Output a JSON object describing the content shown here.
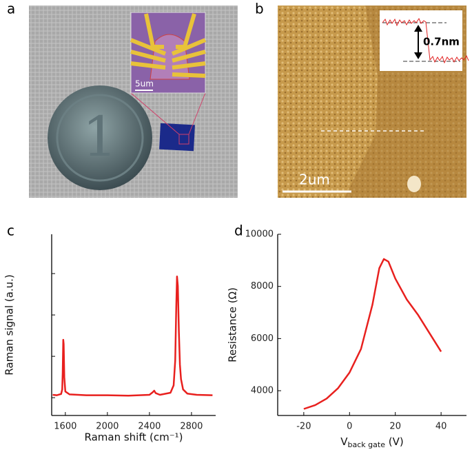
{
  "panels": {
    "a": {
      "label": "a",
      "scale_bar": "5um"
    },
    "b": {
      "label": "b",
      "step_height": "0.7nm",
      "scale_bar": "2um"
    },
    "c": {
      "label": "c"
    },
    "d": {
      "label": "d"
    }
  },
  "chart_data": [
    {
      "type": "line",
      "xlabel": "Raman shift (cm⁻¹)",
      "ylabel": "Raman signal (a.u.)",
      "x": [
        1480,
        1520,
        1560,
        1570,
        1575,
        1580,
        1584,
        1590,
        1600,
        1640,
        1800,
        2000,
        2200,
        2400,
        2430,
        2445,
        2460,
        2500,
        2600,
        2630,
        2645,
        2655,
        2662,
        2670,
        2680,
        2690,
        2700,
        2720,
        2760,
        2850,
        3000
      ],
      "series": [
        {
          "color": "#e8201e",
          "values": [
            0.07,
            0.06,
            0.09,
            0.2,
            0.6,
            1.4,
            1.3,
            0.5,
            0.15,
            0.08,
            0.06,
            0.06,
            0.05,
            0.07,
            0.13,
            0.17,
            0.11,
            0.07,
            0.12,
            0.3,
            0.9,
            2.2,
            2.93,
            2.7,
            1.6,
            0.8,
            0.45,
            0.2,
            0.1,
            0.07,
            0.06
          ]
        }
      ],
      "xlim": [
        1470,
        3030
      ],
      "xticks": [
        1600,
        2000,
        2400,
        2800
      ],
      "ylim": [
        -0.43,
        3.95
      ],
      "yticks": [
        {
          "value": 0,
          "label": null
        },
        {
          "value": 1,
          "label": null
        },
        {
          "value": 2,
          "label": null
        },
        {
          "value": 3,
          "label": null
        }
      ]
    },
    {
      "type": "line",
      "xlabel": [
        "V",
        "back gate",
        " (V)"
      ],
      "ylabel": "Resistance (Ω)",
      "x": [
        -20,
        -15,
        -10,
        -5,
        0,
        5,
        10,
        13,
        15,
        17,
        20,
        25,
        30,
        35,
        40
      ],
      "series": [
        {
          "color": "#e8201e",
          "values": [
            3300,
            3450,
            3700,
            4100,
            4700,
            5600,
            7300,
            8700,
            9050,
            8950,
            8300,
            7500,
            6900,
            6200,
            5500
          ]
        }
      ],
      "xlim": [
        -31.4,
        51.1
      ],
      "xticks": [
        -20,
        0,
        20,
        40
      ],
      "ylim": [
        3050,
        10000
      ],
      "yticks": [
        4000,
        6000,
        8000,
        10000
      ]
    }
  ]
}
